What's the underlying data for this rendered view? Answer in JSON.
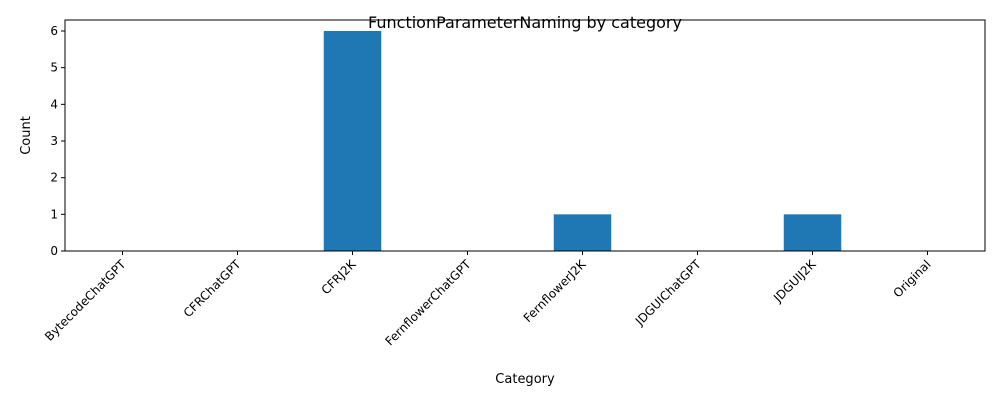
{
  "chart_data": {
    "type": "bar",
    "title": "FunctionParameterNaming by category",
    "xlabel": "Category",
    "ylabel": "Count",
    "categories": [
      "BytecodeChatGPT",
      "CFRChatGPT",
      "CFRJ2K",
      "FernflowerChatGPT",
      "FernflowerJ2K",
      "JDGUIChatGPT",
      "JDGUIJ2K",
      "Original"
    ],
    "values": [
      0,
      0,
      6,
      0,
      1,
      0,
      1,
      0
    ],
    "ylim": [
      0,
      6.3
    ],
    "yticks": [
      0,
      1,
      2,
      3,
      4,
      5,
      6
    ],
    "bar_color": "#1f77b4",
    "grid": false,
    "legend": "none"
  }
}
